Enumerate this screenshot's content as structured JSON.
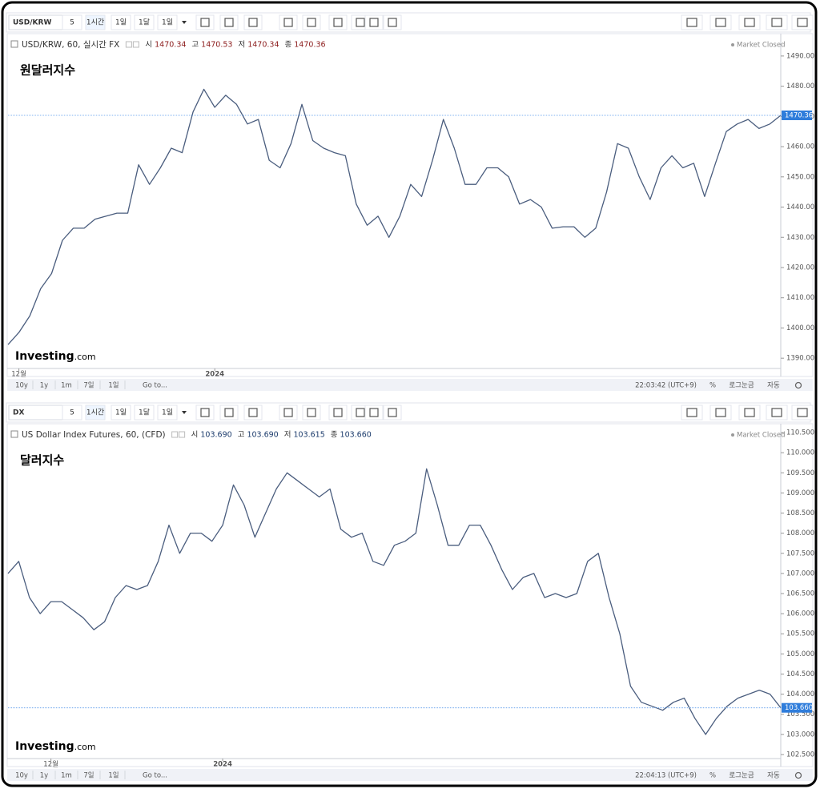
{
  "toolbar": {
    "intervals": [
      "5",
      "1시간",
      "1일",
      "1달",
      "1일"
    ]
  },
  "footer": {
    "ranges": [
      "10y",
      "1y",
      "1m",
      "7일",
      "1일",
      "Go to..."
    ],
    "scales": [
      "%",
      "로그눈금",
      "자동"
    ]
  },
  "logo": {
    "brand": "Investing",
    "domain": ".com"
  },
  "status": "Market Closed",
  "chart_data": [
    {
      "type": "line",
      "symbol": "USD/KRW",
      "title": "USD/KRW, 60, 실시간 FX",
      "annotation": "원달러지수",
      "ohlc": [
        {
          "label": "시",
          "value": "1470.34"
        },
        {
          "label": "고",
          "value": "1470.53"
        },
        {
          "label": "저",
          "value": "1470.34"
        },
        {
          "label": "종",
          "value": "1470.36"
        }
      ],
      "time": "22:03:42 (UTC+9)",
      "color": "#4a5d7e",
      "values": [
        1394.5,
        1398.5,
        1404,
        1413,
        1418,
        1429,
        1433,
        1433,
        1436,
        1437,
        1438,
        1438,
        1454,
        1447.5,
        1453,
        1459.5,
        1458,
        1471.5,
        1479,
        1473,
        1477,
        1474,
        1467.5,
        1469,
        1455.5,
        1453,
        1461,
        1474,
        1462,
        1459.5,
        1458,
        1457,
        1441,
        1434,
        1437,
        1430,
        1437,
        1447.5,
        1443.5,
        1455.5,
        1469,
        1459.5,
        1447.5,
        1447.5,
        1453,
        1453,
        1450,
        1441,
        1442.5,
        1440,
        1433,
        1433.5,
        1433.5,
        1430,
        1433,
        1445,
        1461,
        1459.5,
        1450,
        1442.5,
        1453,
        1457,
        1453,
        1454.5,
        1443.5,
        1454.5,
        1465,
        1467.5,
        1469,
        1466,
        1467.5,
        1470.36
      ],
      "xlim": [
        0,
        71
      ],
      "xticks": [
        {
          "value": 1,
          "label": "12월"
        },
        {
          "value": 19,
          "label": "2024"
        }
      ],
      "ylim": [
        1386.6,
        1496.6
      ],
      "yticks": [
        {
          "value": 1390,
          "label": "1390.00"
        },
        {
          "value": 1400,
          "label": "1400.00"
        },
        {
          "value": 1410,
          "label": "1410.00"
        },
        {
          "value": 1420,
          "label": "1420.00"
        },
        {
          "value": 1430,
          "label": "1430.00"
        },
        {
          "value": 1440,
          "label": "1440.00"
        },
        {
          "value": 1450,
          "label": "1450.00"
        },
        {
          "value": 1460,
          "label": "1460.00"
        },
        {
          "value": 1470,
          "label": "1470.00"
        },
        {
          "value": 1480,
          "label": "1480.00"
        },
        {
          "value": 1490,
          "label": "1490.00"
        }
      ],
      "last_price": 1470.36
    },
    {
      "type": "line",
      "symbol": "DX",
      "title": "US Dollar Index Futures, 60, (CFD)",
      "annotation": "달러지수",
      "ohlc": [
        {
          "label": "시",
          "value": "103.690"
        },
        {
          "label": "고",
          "value": "103.690"
        },
        {
          "label": "저",
          "value": "103.615"
        },
        {
          "label": "종",
          "value": "103.660"
        }
      ],
      "time": "22:04:13 (UTC+9)",
      "color": "#4a5d7e",
      "values": [
        107.0,
        107.3,
        106.4,
        106.0,
        106.3,
        106.3,
        106.1,
        105.9,
        105.6,
        105.8,
        106.4,
        106.7,
        106.6,
        106.7,
        107.3,
        108.2,
        107.5,
        108.0,
        108.0,
        107.8,
        108.2,
        109.2,
        108.7,
        107.9,
        108.5,
        109.1,
        109.5,
        109.3,
        109.1,
        108.9,
        109.1,
        108.1,
        107.9,
        108.0,
        107.3,
        107.2,
        107.7,
        107.8,
        108.0,
        109.6,
        108.7,
        107.7,
        107.7,
        108.2,
        108.2,
        107.7,
        107.1,
        106.6,
        106.9,
        107.0,
        106.4,
        106.5,
        106.4,
        106.5,
        107.3,
        107.5,
        106.4,
        105.5,
        104.2,
        103.8,
        103.7,
        103.6,
        103.8,
        103.9,
        103.4,
        103.0,
        103.4,
        103.7,
        103.9,
        104.0,
        104.1,
        104.0,
        103.66
      ],
      "xlim": [
        0,
        72
      ],
      "xticks": [
        {
          "value": 4,
          "label": "12월"
        },
        {
          "value": 20,
          "label": "2024"
        }
      ],
      "ylim": [
        102.4,
        110.66
      ],
      "yticks": [
        {
          "value": 102.5,
          "label": "102.500"
        },
        {
          "value": 103,
          "label": "103.000"
        },
        {
          "value": 103.5,
          "label": "103.500"
        },
        {
          "value": 104,
          "label": "104.000"
        },
        {
          "value": 104.5,
          "label": "104.500"
        },
        {
          "value": 105,
          "label": "105.000"
        },
        {
          "value": 105.5,
          "label": "105.500"
        },
        {
          "value": 106,
          "label": "106.000"
        },
        {
          "value": 106.5,
          "label": "106.500"
        },
        {
          "value": 107,
          "label": "107.000"
        },
        {
          "value": 107.5,
          "label": "107.500"
        },
        {
          "value": 108,
          "label": "108.000"
        },
        {
          "value": 108.5,
          "label": "108.500"
        },
        {
          "value": 109,
          "label": "109.000"
        },
        {
          "value": 109.5,
          "label": "109.500"
        },
        {
          "value": 110,
          "label": "110.000"
        },
        {
          "value": 110.5,
          "label": "110.500"
        }
      ],
      "last_price": {
        "value": 103.66,
        "label": "103.660"
      }
    }
  ]
}
